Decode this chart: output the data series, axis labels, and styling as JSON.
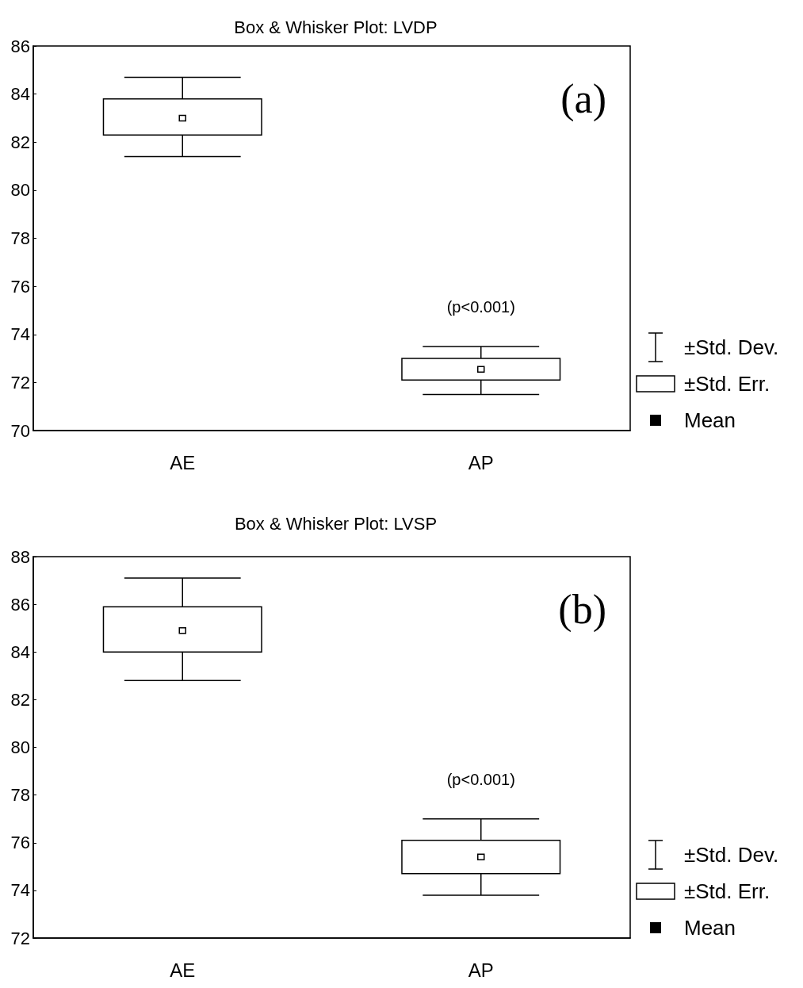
{
  "chart_data": [
    {
      "type": "box",
      "title": "Box & Whisker Plot: LVDP",
      "categories": [
        "AE",
        "AP"
      ],
      "series": [
        {
          "color": "#000000",
          "boxes": [
            {
              "low": 81.4,
              "q1": 82.3,
              "q3": 83.8,
              "high": 84.7,
              "mean": 83.0
            },
            {
              "low": 71.5,
              "q1": 72.1,
              "q3": 73.0,
              "high": 73.5,
              "mean": 72.55
            }
          ]
        }
      ],
      "ylim": [
        70,
        86
      ],
      "yticks": [
        70,
        72,
        74,
        76,
        78,
        80,
        82,
        84,
        86
      ],
      "grid": false,
      "annotations": [
        "(a)",
        "(p<0.001)",
        "±Std. Dev.",
        "±Std. Err.",
        "Mean"
      ]
    },
    {
      "type": "box",
      "title": "Box & Whisker Plot: LVSP",
      "categories": [
        "AE",
        "AP"
      ],
      "series": [
        {
          "color": "#000000",
          "boxes": [
            {
              "low": 82.8,
              "q1": 84.0,
              "q3": 85.9,
              "high": 87.1,
              "mean": 84.9
            },
            {
              "low": 73.8,
              "q1": 74.7,
              "q3": 76.1,
              "high": 77.0,
              "mean": 75.4
            }
          ]
        }
      ],
      "ylim": [
        72,
        88
      ],
      "yticks": [
        72,
        74,
        76,
        78,
        80,
        82,
        84,
        86,
        88
      ],
      "grid": false,
      "annotations": [
        "(b)",
        "(p<0.001)",
        "±Std. Dev.",
        "±Std. Err.",
        "Mean"
      ]
    }
  ]
}
